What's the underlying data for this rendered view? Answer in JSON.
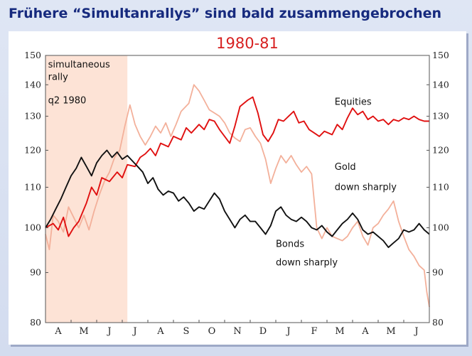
{
  "page": {
    "heading": "Frühere “Simultanrallys” sind bald zusammengebrochen"
  },
  "chart_data": {
    "type": "line",
    "title": "1980-81",
    "xlabel": "",
    "ylabel": "",
    "ylim": [
      80,
      150
    ],
    "y_scale": "log",
    "y_ticks": [
      80,
      90,
      100,
      110,
      120,
      130,
      140,
      150
    ],
    "grid": false,
    "months": [
      "A",
      "M",
      "J",
      "J",
      "A",
      "S",
      "O",
      "N",
      "D",
      "J",
      "F",
      "M",
      "A",
      "M",
      "J"
    ],
    "x_unit": "months from start of April 1980",
    "x_range": [
      0,
      15
    ],
    "shaded_region": {
      "x_start": 0,
      "x_end": 3.2,
      "color": "#fde3d6"
    },
    "annotations": [
      {
        "text": "simultaneous",
        "x": 0.1,
        "y": 145.8
      },
      {
        "text": "rally",
        "x": 0.1,
        "y": 141.6
      },
      {
        "text": "q2 1980",
        "x": 0.1,
        "y": 134.0
      },
      {
        "text": "Equities",
        "x": 11.3,
        "y": 133.6
      },
      {
        "text": "Gold",
        "x": 11.3,
        "y": 114.6
      },
      {
        "text": "down sharply",
        "x": 11.3,
        "y": 109.3
      },
      {
        "text": "Bonds",
        "x": 9.0,
        "y": 95.6
      },
      {
        "text": "down sharply",
        "x": 9.0,
        "y": 91.5
      }
    ],
    "series": [
      {
        "name": "Equities",
        "color": "#e01010",
        "points": [
          [
            0,
            100
          ],
          [
            0.3,
            101
          ],
          [
            0.5,
            99.5
          ],
          [
            0.7,
            102.5
          ],
          [
            0.9,
            98
          ],
          [
            1.1,
            100
          ],
          [
            1.3,
            101.5
          ],
          [
            1.6,
            106
          ],
          [
            1.8,
            110
          ],
          [
            2.0,
            108
          ],
          [
            2.2,
            112.5
          ],
          [
            2.5,
            111.5
          ],
          [
            2.8,
            114
          ],
          [
            3.0,
            112.5
          ],
          [
            3.2,
            116
          ],
          [
            3.5,
            115.5
          ],
          [
            3.7,
            118
          ],
          [
            3.9,
            119
          ],
          [
            4.1,
            120.5
          ],
          [
            4.3,
            118.5
          ],
          [
            4.5,
            122
          ],
          [
            4.8,
            121
          ],
          [
            5.0,
            124
          ],
          [
            5.3,
            123
          ],
          [
            5.5,
            126.5
          ],
          [
            5.7,
            125
          ],
          [
            6.0,
            127.5
          ],
          [
            6.2,
            126
          ],
          [
            6.4,
            129
          ],
          [
            6.6,
            128.5
          ],
          [
            6.8,
            126
          ],
          [
            7.0,
            124
          ],
          [
            7.2,
            122
          ],
          [
            7.4,
            127
          ],
          [
            7.6,
            133
          ],
          [
            7.9,
            135
          ],
          [
            8.1,
            136
          ],
          [
            8.3,
            131
          ],
          [
            8.5,
            124.5
          ],
          [
            8.7,
            122.5
          ],
          [
            8.9,
            125
          ],
          [
            9.1,
            129
          ],
          [
            9.3,
            128.5
          ],
          [
            9.5,
            130
          ],
          [
            9.7,
            131.5
          ],
          [
            9.9,
            128
          ],
          [
            10.1,
            128.5
          ],
          [
            10.3,
            126
          ],
          [
            10.5,
            125
          ],
          [
            10.7,
            124
          ],
          [
            10.9,
            125.5
          ],
          [
            11.2,
            124.5
          ],
          [
            11.4,
            127.5
          ],
          [
            11.6,
            126
          ],
          [
            11.8,
            129.5
          ],
          [
            12.0,
            132.5
          ],
          [
            12.2,
            130.5
          ],
          [
            12.4,
            131.5
          ],
          [
            12.6,
            129
          ],
          [
            12.8,
            130
          ],
          [
            13.0,
            128.5
          ],
          [
            13.2,
            129
          ],
          [
            13.4,
            127.5
          ],
          [
            13.6,
            129
          ],
          [
            13.8,
            128.5
          ],
          [
            14.0,
            129.5
          ],
          [
            14.2,
            129
          ],
          [
            14.4,
            130
          ],
          [
            14.6,
            129
          ],
          [
            14.8,
            128.5
          ],
          [
            15.0,
            128.5
          ]
        ]
      },
      {
        "name": "Gold",
        "color": "#f3b09a",
        "points": [
          [
            0,
            98.5
          ],
          [
            0.15,
            95
          ],
          [
            0.3,
            103
          ],
          [
            0.5,
            101.5
          ],
          [
            0.7,
            99
          ],
          [
            0.9,
            105
          ],
          [
            1.1,
            102.5
          ],
          [
            1.3,
            100
          ],
          [
            1.5,
            103
          ],
          [
            1.7,
            99.5
          ],
          [
            1.9,
            104
          ],
          [
            2.1,
            108
          ],
          [
            2.3,
            111.5
          ],
          [
            2.5,
            114
          ],
          [
            2.7,
            118
          ],
          [
            2.9,
            120
          ],
          [
            3.1,
            127
          ],
          [
            3.3,
            133.5
          ],
          [
            3.5,
            127.5
          ],
          [
            3.7,
            124
          ],
          [
            3.9,
            121.5
          ],
          [
            4.1,
            124
          ],
          [
            4.3,
            127
          ],
          [
            4.5,
            125
          ],
          [
            4.7,
            128
          ],
          [
            4.9,
            124
          ],
          [
            5.1,
            127.5
          ],
          [
            5.3,
            131.5
          ],
          [
            5.6,
            134
          ],
          [
            5.8,
            140
          ],
          [
            6.0,
            138
          ],
          [
            6.2,
            135
          ],
          [
            6.4,
            132
          ],
          [
            6.6,
            131
          ],
          [
            6.8,
            130
          ],
          [
            7.0,
            128
          ],
          [
            7.2,
            125
          ],
          [
            7.4,
            123.5
          ],
          [
            7.6,
            122.5
          ],
          [
            7.8,
            126
          ],
          [
            8.0,
            126.5
          ],
          [
            8.2,
            124
          ],
          [
            8.4,
            122
          ],
          [
            8.6,
            117.5
          ],
          [
            8.8,
            111
          ],
          [
            9.0,
            115
          ],
          [
            9.2,
            118.5
          ],
          [
            9.4,
            116.5
          ],
          [
            9.6,
            118.5
          ],
          [
            9.8,
            116
          ],
          [
            10.0,
            114
          ],
          [
            10.2,
            115.5
          ],
          [
            10.4,
            113.5
          ],
          [
            10.6,
            100
          ],
          [
            10.8,
            97.5
          ],
          [
            11.0,
            100
          ],
          [
            11.2,
            98
          ],
          [
            11.4,
            97.5
          ],
          [
            11.6,
            97
          ],
          [
            11.8,
            98
          ],
          [
            12.0,
            100
          ],
          [
            12.2,
            101.5
          ],
          [
            12.4,
            98
          ],
          [
            12.6,
            96
          ],
          [
            12.8,
            100
          ],
          [
            13.0,
            101
          ],
          [
            13.2,
            103
          ],
          [
            13.4,
            104.5
          ],
          [
            13.6,
            106.5
          ],
          [
            13.8,
            101.5
          ],
          [
            14.0,
            98
          ],
          [
            14.2,
            95
          ],
          [
            14.4,
            93.5
          ],
          [
            14.6,
            91.5
          ],
          [
            14.8,
            90.5
          ],
          [
            14.9,
            86
          ],
          [
            15.0,
            83
          ]
        ]
      },
      {
        "name": "Bonds",
        "color": "#111111",
        "points": [
          [
            0,
            100
          ],
          [
            0.2,
            102
          ],
          [
            0.4,
            104.5
          ],
          [
            0.6,
            107
          ],
          [
            0.8,
            110
          ],
          [
            1.0,
            113
          ],
          [
            1.2,
            115
          ],
          [
            1.4,
            118
          ],
          [
            1.6,
            115.5
          ],
          [
            1.8,
            113
          ],
          [
            2.0,
            116.5
          ],
          [
            2.2,
            118.5
          ],
          [
            2.4,
            120
          ],
          [
            2.6,
            118
          ],
          [
            2.8,
            119.5
          ],
          [
            3.0,
            117.5
          ],
          [
            3.2,
            118.5
          ],
          [
            3.4,
            117
          ],
          [
            3.6,
            115.5
          ],
          [
            3.8,
            114
          ],
          [
            4.0,
            111
          ],
          [
            4.2,
            112.5
          ],
          [
            4.4,
            109.5
          ],
          [
            4.6,
            108
          ],
          [
            4.8,
            109
          ],
          [
            5.0,
            108.5
          ],
          [
            5.2,
            106.5
          ],
          [
            5.4,
            107.5
          ],
          [
            5.6,
            106
          ],
          [
            5.8,
            104
          ],
          [
            6.0,
            105
          ],
          [
            6.2,
            104.5
          ],
          [
            6.4,
            106.5
          ],
          [
            6.6,
            108.5
          ],
          [
            6.8,
            107
          ],
          [
            7.0,
            104
          ],
          [
            7.2,
            102
          ],
          [
            7.4,
            100
          ],
          [
            7.6,
            102
          ],
          [
            7.8,
            103
          ],
          [
            8.0,
            101.5
          ],
          [
            8.2,
            101.5
          ],
          [
            8.4,
            100
          ],
          [
            8.6,
            98.5
          ],
          [
            8.8,
            100.5
          ],
          [
            9.0,
            104
          ],
          [
            9.2,
            105
          ],
          [
            9.4,
            103
          ],
          [
            9.6,
            102
          ],
          [
            9.8,
            101.5
          ],
          [
            10.0,
            102.5
          ],
          [
            10.2,
            101.5
          ],
          [
            10.4,
            100
          ],
          [
            10.6,
            99.5
          ],
          [
            10.8,
            100.5
          ],
          [
            11.0,
            99
          ],
          [
            11.2,
            98
          ],
          [
            11.4,
            99.5
          ],
          [
            11.6,
            101
          ],
          [
            11.8,
            102
          ],
          [
            12.0,
            103.5
          ],
          [
            12.2,
            102
          ],
          [
            12.4,
            99.5
          ],
          [
            12.6,
            98.5
          ],
          [
            12.8,
            99
          ],
          [
            13.0,
            98
          ],
          [
            13.2,
            97
          ],
          [
            13.4,
            95.5
          ],
          [
            13.6,
            96.5
          ],
          [
            13.8,
            97.5
          ],
          [
            14.0,
            99.5
          ],
          [
            14.2,
            99
          ],
          [
            14.4,
            99.5
          ],
          [
            14.6,
            101
          ],
          [
            14.8,
            99.5
          ],
          [
            15.0,
            98.5
          ]
        ]
      }
    ]
  }
}
